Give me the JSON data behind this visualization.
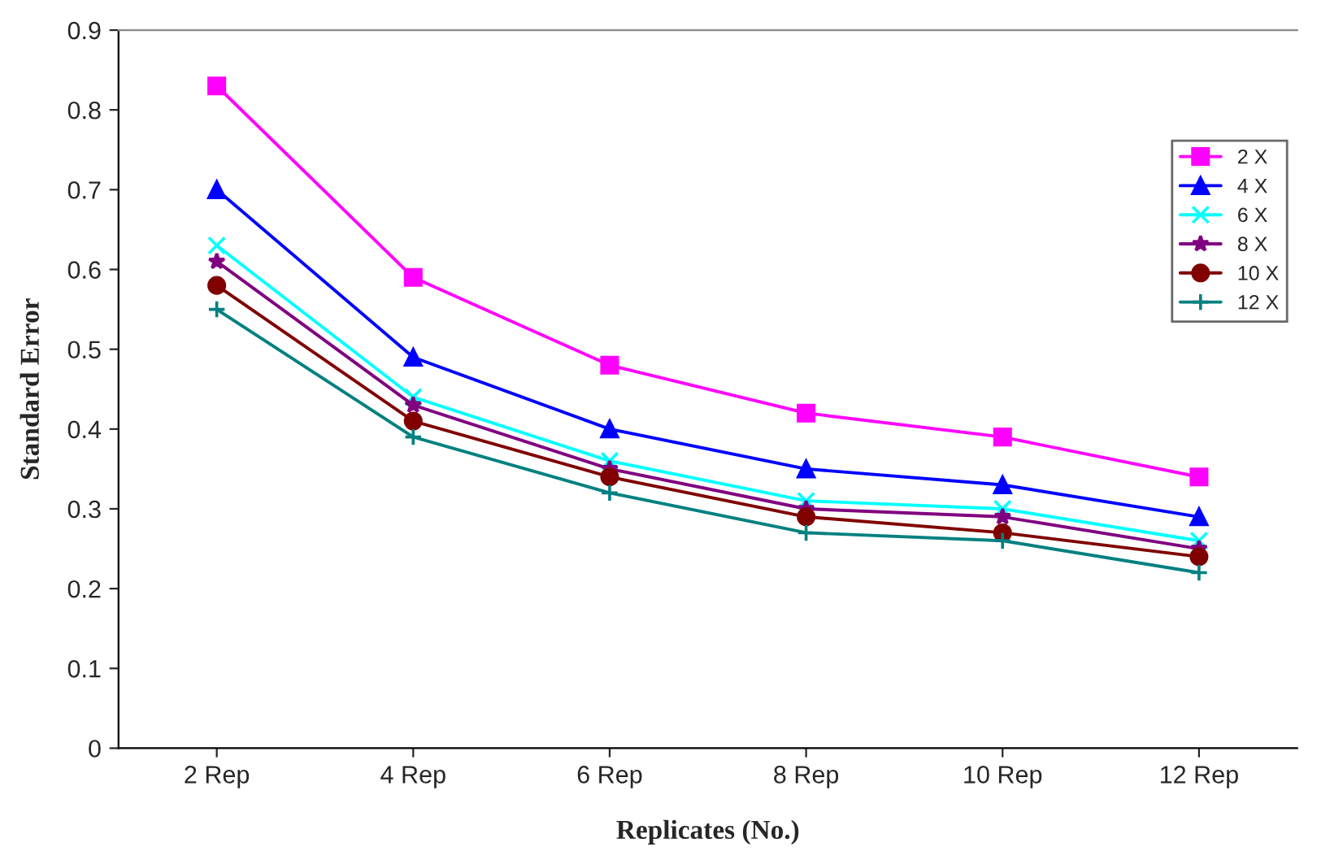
{
  "chart_data": {
    "type": "line",
    "xlabel": "Replicates (No.)",
    "ylabel": "Standard Error",
    "categories": [
      "2 Rep",
      "4 Rep",
      "6 Rep",
      "8 Rep",
      "10 Rep",
      "12 Rep"
    ],
    "ylim": [
      0,
      0.9
    ],
    "yticks": [
      0,
      0.1,
      0.2,
      0.3,
      0.4,
      0.5,
      0.6,
      0.7,
      0.8,
      0.9
    ],
    "grid": false,
    "legend": "right",
    "line_style": "solid",
    "series": [
      {
        "name": "2 X",
        "color": "#ff00ff",
        "marker": "square",
        "values": [
          0.83,
          0.59,
          0.48,
          0.42,
          0.39,
          0.34
        ]
      },
      {
        "name": "4 X",
        "color": "#0000ff",
        "marker": "triangle",
        "values": [
          0.7,
          0.49,
          0.4,
          0.35,
          0.33,
          0.29
        ]
      },
      {
        "name": "6 X",
        "color": "#00ffff",
        "marker": "cross",
        "values": [
          0.63,
          0.44,
          0.36,
          0.31,
          0.3,
          0.26
        ]
      },
      {
        "name": "8 X",
        "color": "#800080",
        "marker": "star",
        "values": [
          0.61,
          0.43,
          0.35,
          0.3,
          0.29,
          0.25
        ]
      },
      {
        "name": "10 X",
        "color": "#800000",
        "marker": "circle",
        "values": [
          0.58,
          0.41,
          0.34,
          0.29,
          0.27,
          0.24
        ]
      },
      {
        "name": "12 X",
        "color": "#008080",
        "marker": "plus",
        "values": [
          0.55,
          0.39,
          0.32,
          0.27,
          0.26,
          0.22
        ]
      }
    ]
  }
}
